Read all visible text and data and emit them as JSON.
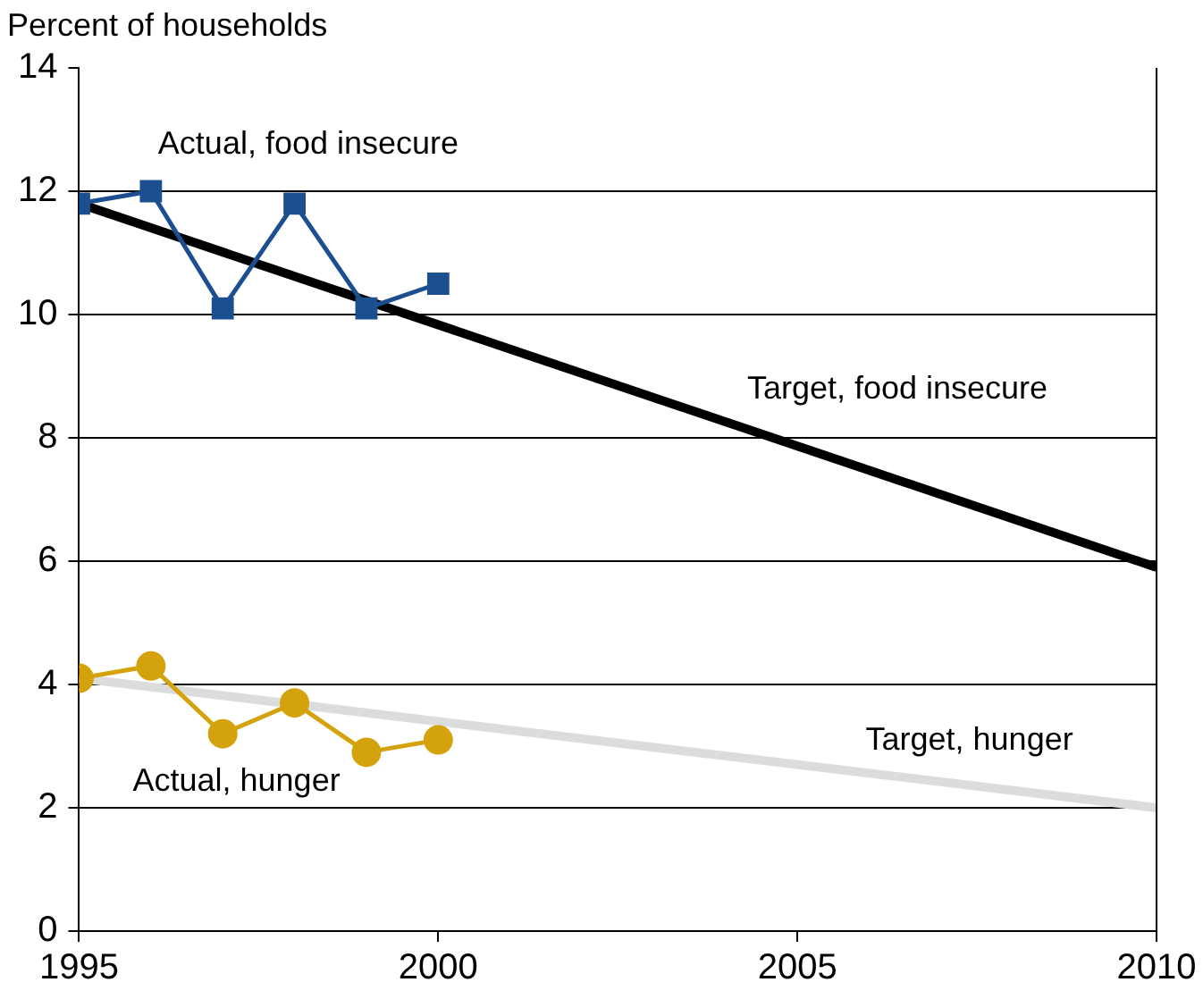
{
  "chart_data": {
    "type": "line",
    "ylabel": "Percent of households",
    "xlim": [
      1995,
      2010
    ],
    "xticks": [
      1995,
      2000,
      2005,
      2010
    ],
    "ylim": [
      0,
      14
    ],
    "yticks": [
      0,
      2,
      4,
      6,
      8,
      10,
      12,
      14
    ],
    "grid": "y",
    "legend": false,
    "line_style": "solid",
    "series": [
      {
        "name": "Actual, food insecure",
        "color": "#1b4f8f",
        "marker": "square",
        "x": [
          1995,
          1996,
          1997,
          1998,
          1999,
          2000
        ],
        "values": [
          11.8,
          12.0,
          10.1,
          11.8,
          10.1,
          10.5
        ]
      },
      {
        "name": "Target, food insecure",
        "color": "#000000",
        "marker": "none",
        "x": [
          1995,
          2010
        ],
        "values": [
          11.8,
          5.9
        ]
      },
      {
        "name": "Actual, hunger",
        "color": "#d4a20c",
        "marker": "circle",
        "x": [
          1995,
          1996,
          1997,
          1998,
          1999,
          2000
        ],
        "values": [
          4.1,
          4.3,
          3.2,
          3.7,
          2.9,
          3.1
        ]
      },
      {
        "name": "Target, hunger",
        "color": "#dcdcdc",
        "marker": "none",
        "x": [
          1995,
          2010
        ],
        "values": [
          4.1,
          2.0
        ]
      }
    ]
  }
}
